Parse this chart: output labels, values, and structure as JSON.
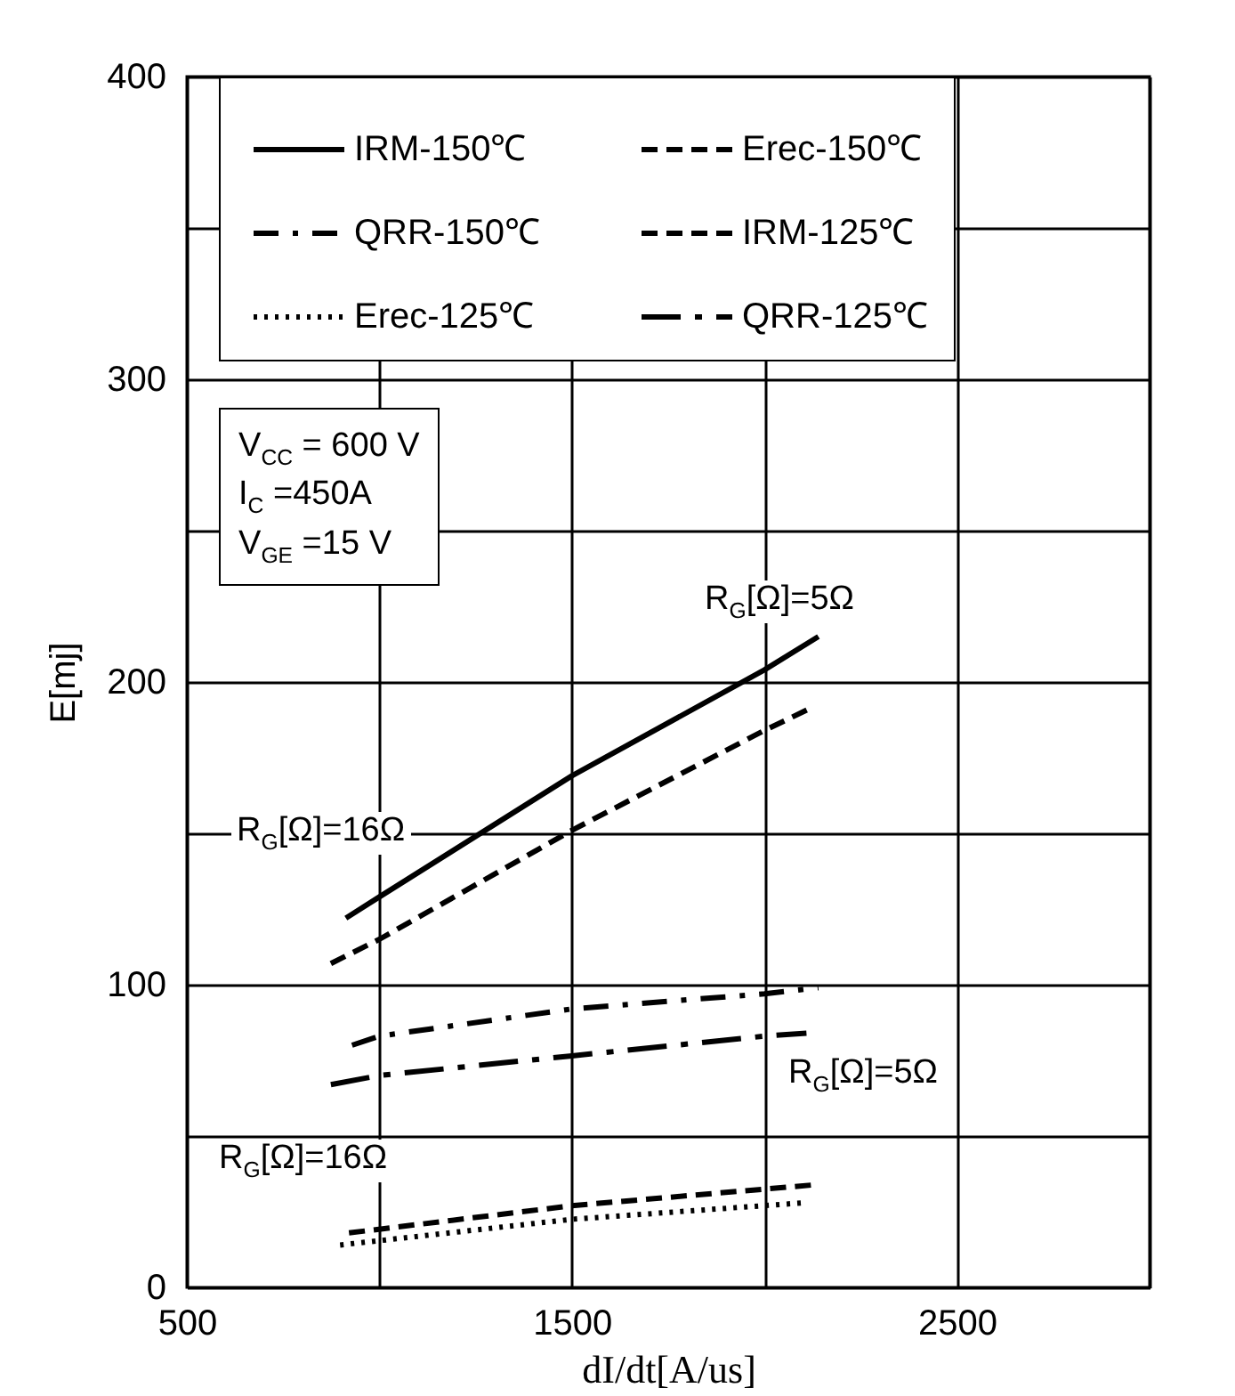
{
  "chart_data": {
    "type": "line",
    "xlabel": "dI/dt[A/us]",
    "ylabel": "E[mj]",
    "xlim": [
      500,
      3000
    ],
    "xticks": [
      500,
      {
        "value": 1000,
        "label": null
      },
      1500,
      {
        "value": 2000,
        "label": null
      },
      2500,
      {
        "value": 3000,
        "label": null
      }
    ],
    "ylim": [
      0,
      400
    ],
    "yticks": [
      0,
      {
        "value": 50,
        "label": null
      },
      100,
      {
        "value": 150,
        "label": null
      },
      200,
      {
        "value": 250,
        "label": null
      },
      300,
      {
        "value": 350,
        "label": null
      },
      400
    ],
    "grid": true,
    "legend": "top",
    "marker": "none",
    "series": [
      {
        "name": "IRM-150℃",
        "color": "#000000",
        "line_style": "solid",
        "x": [
          913,
          1000,
          1500,
          2000,
          2140
        ],
        "values": [
          122,
          129,
          169,
          204,
          215
        ]
      },
      {
        "name": "Erec-150℃",
        "color": "#000000",
        "line_style": "dashed",
        "x": [
          874,
          1000,
          1500,
          2000,
          2114
        ],
        "values": [
          107,
          115,
          151,
          184,
          191
        ]
      },
      {
        "name": "QRR-150℃",
        "color": "#000000",
        "line_style": "dashdot",
        "x": [
          929,
          1000,
          1500,
          2000,
          2140
        ],
        "values": [
          80,
          83,
          92,
          97,
          99
        ]
      },
      {
        "name": "IRM-125℃",
        "color": "#000000",
        "line_style": "dashed",
        "x": [
          921,
          1500,
          2140
        ],
        "values": [
          18,
          27,
          34
        ]
      },
      {
        "name": "Erec-125℃",
        "color": "#000000",
        "line_style": "dotted",
        "x": [
          898,
          1500,
          2109
        ],
        "values": [
          14,
          22.5,
          28
        ]
      },
      {
        "name": "QRR-125℃",
        "color": "#000000",
        "line_style": "longdashdot",
        "x": [
          874,
          1000,
          1500,
          2000,
          2109
        ],
        "values": [
          67,
          70,
          76.5,
          83,
          84
        ]
      }
    ],
    "annotations": [
      "V$_{CC}$ = 600 V",
      "I$_{C}$ =450A",
      "V$_{GE}$ =15 V",
      "R$_{G}$[Ω]=5Ω",
      "R$_{G}$[Ω]=16Ω",
      "R$_{G}$[Ω]=5Ω",
      "R$_{G}$[Ω]=16Ω"
    ]
  }
}
